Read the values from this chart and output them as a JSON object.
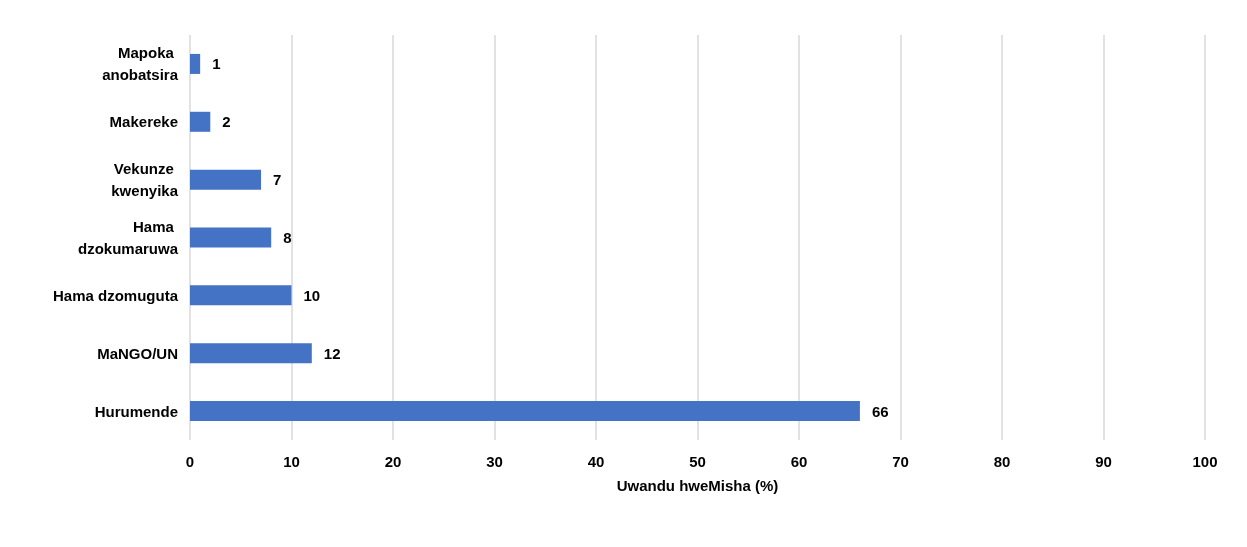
{
  "chart_data": {
    "type": "bar",
    "orientation": "horizontal",
    "xlabel": "Uwandu hweMisha (%)",
    "categories": [
      "Mapoka anobatsira",
      "Makereke",
      "Vekunze kwenyika",
      "Hama dzokumaruwa",
      "Hama dzomuguta",
      "MaNGO/UN",
      "Hurumende"
    ],
    "values": [
      1,
      2,
      7,
      8,
      10,
      12,
      66
    ],
    "color": "#4472c4",
    "xlim": [
      0,
      100
    ],
    "xticks": [
      0,
      10,
      20,
      30,
      40,
      50,
      60,
      70,
      80,
      90,
      100
    ],
    "grid": "x",
    "data_labels": true
  }
}
